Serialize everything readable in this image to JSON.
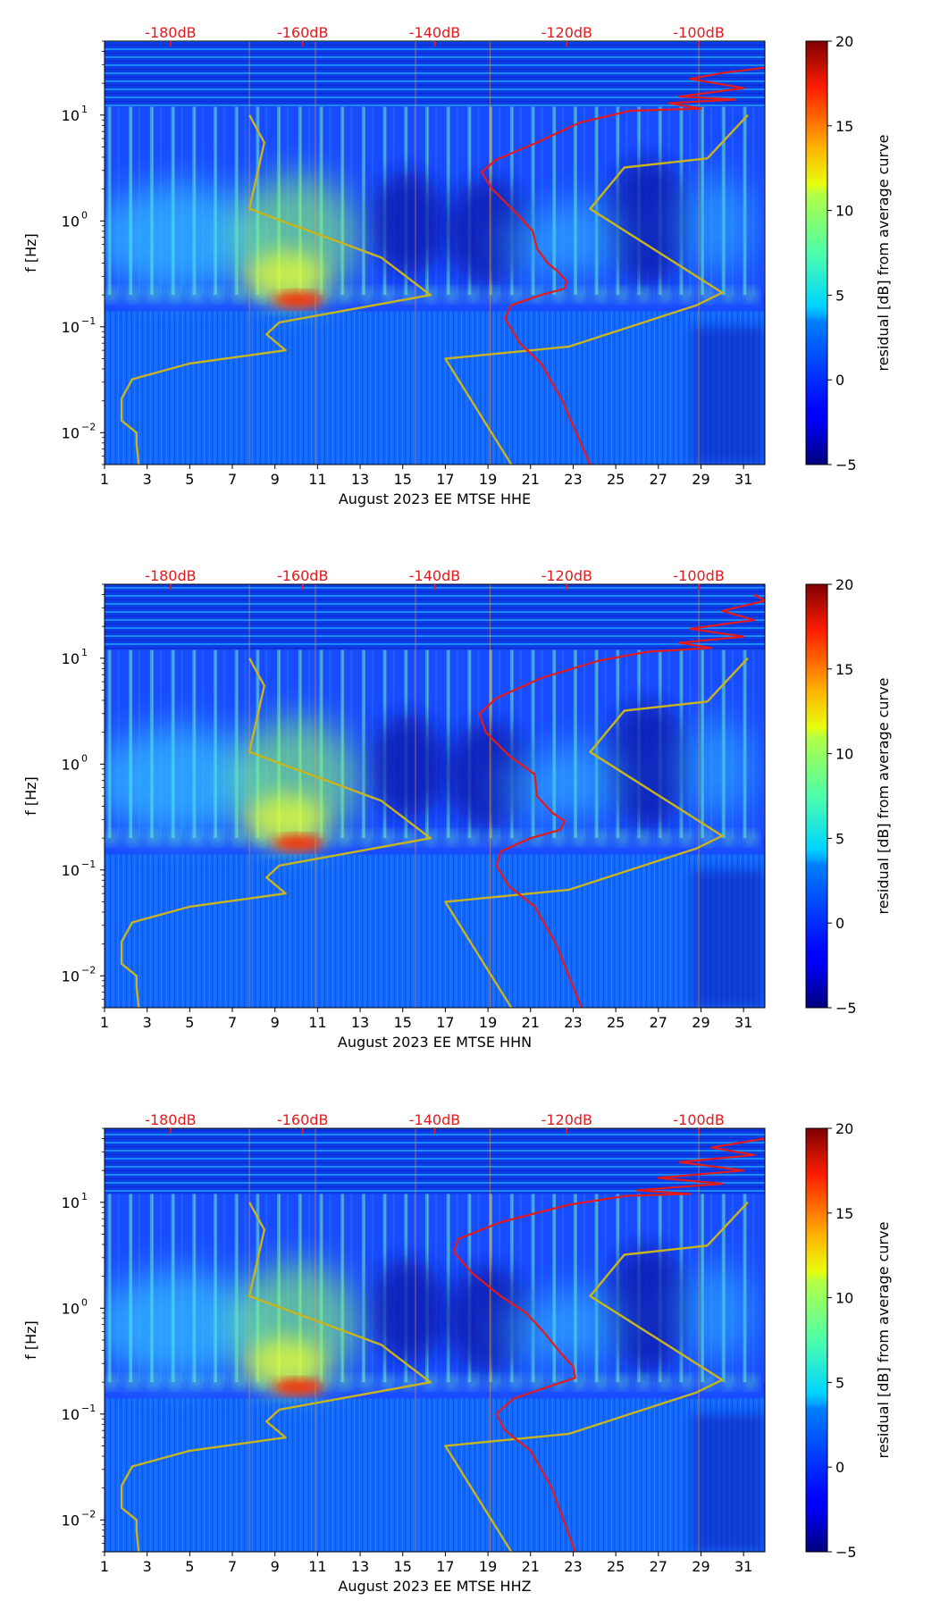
{
  "chart_data": [
    {
      "type": "heatmap",
      "title": "",
      "xlabel": "August 2023 EE MTSE  HHE",
      "ylabel": "f [Hz]",
      "xlim": [
        1,
        32
      ],
      "ylim": [
        0.005,
        50
      ],
      "yscale": "log",
      "x_ticks": [
        "1",
        "3",
        "5",
        "7",
        "9",
        "11",
        "13",
        "15",
        "17",
        "19",
        "21",
        "23",
        "25",
        "27",
        "29",
        "31"
      ],
      "y_ticks": [
        {
          "value": 10,
          "base": "10",
          "exp": "1"
        },
        {
          "value": 1,
          "base": "10",
          "exp": "0"
        },
        {
          "value": 0.1,
          "base": "10",
          "exp": "−1"
        },
        {
          "value": 0.01,
          "base": "10",
          "exp": "−2"
        }
      ],
      "db_scale": [
        {
          "label": "-180dB",
          "x": 4.1
        },
        {
          "label": "-160dB",
          "x": 10.3
        },
        {
          "label": "-140dB",
          "x": 16.5
        },
        {
          "label": "-120dB",
          "x": 22.7
        },
        {
          "label": "-100dB",
          "x": 28.9
        }
      ],
      "colorbar": {
        "label": "residual [dB] from average curve",
        "range": [
          -5,
          20
        ],
        "ticks": [
          "20",
          "15",
          "10",
          "5",
          "0",
          "−5"
        ]
      },
      "series": [
        {
          "name": "yellow-curve-1",
          "color": "#c8b41e",
          "points": [
            [
              2.6,
              0.005
            ],
            [
              2.5,
              0.008
            ],
            [
              2.5,
              0.01
            ],
            [
              1.8,
              0.013
            ],
            [
              1.8,
              0.021
            ],
            [
              2.3,
              0.032
            ],
            [
              5,
              0.045
            ],
            [
              9.5,
              0.06
            ],
            [
              8.6,
              0.085
            ],
            [
              9.2,
              0.11
            ],
            [
              16.3,
              0.2
            ],
            [
              14,
              0.45
            ],
            [
              7.8,
              1.3
            ],
            [
              8.5,
              5.5
            ],
            [
              7.8,
              10
            ]
          ]
        },
        {
          "name": "yellow-curve-2",
          "color": "#c8b41e",
          "points": [
            [
              20.1,
              0.005
            ],
            [
              17,
              0.05
            ],
            [
              22.8,
              0.065
            ],
            [
              28.8,
              0.16
            ],
            [
              30,
              0.21
            ],
            [
              23.8,
              1.3
            ],
            [
              25.4,
              3.2
            ],
            [
              29.3,
              3.9
            ],
            [
              31.2,
              10
            ]
          ]
        },
        {
          "name": "red-curve",
          "color": "#e31a1c",
          "points": [
            [
              23.8,
              0.005
            ],
            [
              22.5,
              0.02
            ],
            [
              21.5,
              0.045
            ],
            [
              20.5,
              0.07
            ],
            [
              19.8,
              0.12
            ],
            [
              20.1,
              0.16
            ],
            [
              21.5,
              0.2
            ],
            [
              22.6,
              0.23
            ],
            [
              22.7,
              0.27
            ],
            [
              22.3,
              0.33
            ],
            [
              21.8,
              0.4
            ],
            [
              21.3,
              0.55
            ],
            [
              21.1,
              0.8
            ],
            [
              20.3,
              1.2
            ],
            [
              19.2,
              2.0
            ],
            [
              18.7,
              2.9
            ],
            [
              19.4,
              3.8
            ],
            [
              21.3,
              5.5
            ],
            [
              23.3,
              8.5
            ],
            [
              25.7,
              11
            ],
            [
              29,
              11.5
            ],
            [
              27.5,
              13
            ],
            [
              30.6,
              14
            ],
            [
              28,
              15
            ],
            [
              31,
              18
            ],
            [
              28.5,
              22
            ],
            [
              30,
              25
            ],
            [
              32,
              28
            ]
          ]
        }
      ]
    },
    {
      "type": "heatmap",
      "title": "",
      "xlabel": "August 2023 EE MTSE  HHN",
      "ylabel": "f [Hz]",
      "xlim": [
        1,
        32
      ],
      "ylim": [
        0.005,
        50
      ],
      "yscale": "log",
      "x_ticks": [
        "1",
        "3",
        "5",
        "7",
        "9",
        "11",
        "13",
        "15",
        "17",
        "19",
        "21",
        "23",
        "25",
        "27",
        "29",
        "31"
      ],
      "y_ticks": [
        {
          "value": 10,
          "base": "10",
          "exp": "1"
        },
        {
          "value": 1,
          "base": "10",
          "exp": "0"
        },
        {
          "value": 0.1,
          "base": "10",
          "exp": "−1"
        },
        {
          "value": 0.01,
          "base": "10",
          "exp": "−2"
        }
      ],
      "db_scale": [
        {
          "label": "-180dB",
          "x": 4.1
        },
        {
          "label": "-160dB",
          "x": 10.3
        },
        {
          "label": "-140dB",
          "x": 16.5
        },
        {
          "label": "-120dB",
          "x": 22.7
        },
        {
          "label": "-100dB",
          "x": 28.9
        }
      ],
      "colorbar": {
        "label": "residual [dB] from average curve",
        "range": [
          -5,
          20
        ],
        "ticks": [
          "20",
          "15",
          "10",
          "5",
          "0",
          "−5"
        ]
      },
      "series": [
        {
          "name": "yellow-curve-1",
          "color": "#c8b41e",
          "points": [
            [
              2.6,
              0.005
            ],
            [
              2.5,
              0.008
            ],
            [
              2.5,
              0.01
            ],
            [
              1.8,
              0.013
            ],
            [
              1.8,
              0.021
            ],
            [
              2.3,
              0.032
            ],
            [
              5,
              0.045
            ],
            [
              9.5,
              0.06
            ],
            [
              8.6,
              0.085
            ],
            [
              9.2,
              0.11
            ],
            [
              16.3,
              0.2
            ],
            [
              14,
              0.45
            ],
            [
              7.8,
              1.3
            ],
            [
              8.5,
              5.5
            ],
            [
              7.8,
              10
            ]
          ]
        },
        {
          "name": "yellow-curve-2",
          "color": "#c8b41e",
          "points": [
            [
              20.1,
              0.005
            ],
            [
              17,
              0.05
            ],
            [
              22.8,
              0.065
            ],
            [
              28.8,
              0.16
            ],
            [
              30,
              0.21
            ],
            [
              23.8,
              1.3
            ],
            [
              25.4,
              3.2
            ],
            [
              29.3,
              3.9
            ],
            [
              31.2,
              10
            ]
          ]
        },
        {
          "name": "red-curve",
          "color": "#e31a1c",
          "points": [
            [
              23.4,
              0.005
            ],
            [
              22.2,
              0.02
            ],
            [
              21.2,
              0.045
            ],
            [
              20,
              0.07
            ],
            [
              19.4,
              0.11
            ],
            [
              19.6,
              0.15
            ],
            [
              21,
              0.2
            ],
            [
              22.4,
              0.24
            ],
            [
              22.6,
              0.29
            ],
            [
              22,
              0.35
            ],
            [
              21.3,
              0.5
            ],
            [
              21.2,
              0.8
            ],
            [
              20,
              1.2
            ],
            [
              18.9,
              2.0
            ],
            [
              18.6,
              3.0
            ],
            [
              19.4,
              4.2
            ],
            [
              21.5,
              6.5
            ],
            [
              24.2,
              9.5
            ],
            [
              26.5,
              11.5
            ],
            [
              29.5,
              12.5
            ],
            [
              28,
              14
            ],
            [
              31,
              16
            ],
            [
              28.5,
              19
            ],
            [
              31.5,
              23
            ],
            [
              30,
              28
            ],
            [
              32,
              35
            ],
            [
              31.5,
              40
            ]
          ]
        }
      ]
    },
    {
      "type": "heatmap",
      "title": "",
      "xlabel": "August 2023 EE MTSE  HHZ",
      "ylabel": "f [Hz]",
      "xlim": [
        1,
        32
      ],
      "ylim": [
        0.005,
        50
      ],
      "yscale": "log",
      "x_ticks": [
        "1",
        "3",
        "5",
        "7",
        "9",
        "11",
        "13",
        "15",
        "17",
        "19",
        "21",
        "23",
        "25",
        "27",
        "29",
        "31"
      ],
      "y_ticks": [
        {
          "value": 10,
          "base": "10",
          "exp": "1"
        },
        {
          "value": 1,
          "base": "10",
          "exp": "0"
        },
        {
          "value": 0.1,
          "base": "10",
          "exp": "−1"
        },
        {
          "value": 0.01,
          "base": "10",
          "exp": "−2"
        }
      ],
      "db_scale": [
        {
          "label": "-180dB",
          "x": 4.1
        },
        {
          "label": "-160dB",
          "x": 10.3
        },
        {
          "label": "-140dB",
          "x": 16.5
        },
        {
          "label": "-120dB",
          "x": 22.7
        },
        {
          "label": "-100dB",
          "x": 28.9
        }
      ],
      "colorbar": {
        "label": "residual [dB] from average curve",
        "range": [
          -5,
          20
        ],
        "ticks": [
          "20",
          "15",
          "10",
          "5",
          "0",
          "−5"
        ]
      },
      "series": [
        {
          "name": "yellow-curve-1",
          "color": "#c8b41e",
          "points": [
            [
              2.6,
              0.005
            ],
            [
              2.5,
              0.008
            ],
            [
              2.5,
              0.01
            ],
            [
              1.8,
              0.013
            ],
            [
              1.8,
              0.021
            ],
            [
              2.3,
              0.032
            ],
            [
              5,
              0.045
            ],
            [
              9.5,
              0.06
            ],
            [
              8.6,
              0.085
            ],
            [
              9.2,
              0.11
            ],
            [
              16.3,
              0.2
            ],
            [
              14,
              0.45
            ],
            [
              7.8,
              1.3
            ],
            [
              8.5,
              5.5
            ],
            [
              7.8,
              10
            ]
          ]
        },
        {
          "name": "yellow-curve-2",
          "color": "#c8b41e",
          "points": [
            [
              20.1,
              0.005
            ],
            [
              17,
              0.05
            ],
            [
              22.8,
              0.065
            ],
            [
              28.8,
              0.16
            ],
            [
              30,
              0.21
            ],
            [
              23.8,
              1.3
            ],
            [
              25.4,
              3.2
            ],
            [
              29.3,
              3.9
            ],
            [
              31.2,
              10
            ]
          ]
        },
        {
          "name": "red-curve",
          "color": "#e31a1c",
          "points": [
            [
              23.1,
              0.005
            ],
            [
              22,
              0.02
            ],
            [
              21,
              0.045
            ],
            [
              19.8,
              0.07
            ],
            [
              19.4,
              0.1
            ],
            [
              20.2,
              0.14
            ],
            [
              21.8,
              0.18
            ],
            [
              23.1,
              0.22
            ],
            [
              23,
              0.28
            ],
            [
              22.4,
              0.38
            ],
            [
              21.6,
              0.6
            ],
            [
              20.8,
              0.9
            ],
            [
              19.6,
              1.3
            ],
            [
              18.2,
              2.2
            ],
            [
              17.4,
              3.4
            ],
            [
              17.6,
              4.5
            ],
            [
              19.6,
              6.5
            ],
            [
              22.8,
              9.5
            ],
            [
              25.5,
              11.5
            ],
            [
              28.5,
              12
            ],
            [
              26,
              13
            ],
            [
              30,
              15
            ],
            [
              27,
              17
            ],
            [
              31,
              20
            ],
            [
              28,
              24
            ],
            [
              31.5,
              28
            ],
            [
              29.5,
              33
            ],
            [
              32,
              40
            ]
          ]
        }
      ]
    }
  ]
}
